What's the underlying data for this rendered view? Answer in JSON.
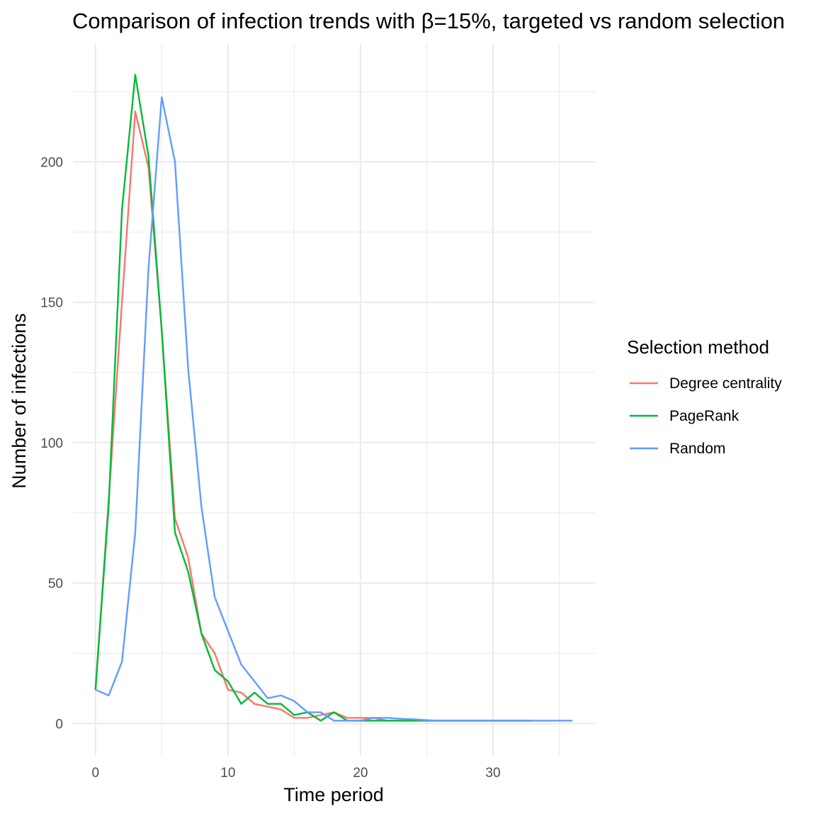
{
  "chart_data": {
    "type": "line",
    "title": "Comparison of infection trends with β=15%, targeted vs random selection",
    "xlabel": "Time period",
    "ylabel": "Number of infections",
    "xlim": [
      -1.7,
      37.7
    ],
    "ylim": [
      -11.5,
      242
    ],
    "x_ticks": [
      0,
      10,
      20,
      30
    ],
    "x_minor_ticks": [
      5,
      15,
      25,
      35
    ],
    "y_ticks": [
      0,
      50,
      100,
      150,
      200
    ],
    "y_minor_ticks": [
      25,
      75,
      125,
      175,
      225
    ],
    "grid": true,
    "legend": {
      "title": "Selection method",
      "position": "right"
    },
    "series": [
      {
        "name": "Degree centrality",
        "color": "#F8766D",
        "x": [
          0,
          1,
          2,
          3,
          4,
          5,
          6,
          7,
          8,
          9,
          10,
          11,
          12,
          13,
          14,
          15,
          16,
          17,
          18,
          19,
          20,
          21,
          22,
          23,
          24,
          25,
          26,
          27,
          28,
          29,
          30,
          31,
          32,
          33
        ],
        "y": [
          12,
          80,
          150,
          218,
          198,
          140,
          73,
          59,
          32,
          25,
          12,
          11,
          7,
          6,
          5,
          2,
          2,
          3,
          4,
          2,
          2,
          2,
          1,
          1,
          1,
          1,
          1,
          1,
          1,
          1,
          1,
          1,
          1,
          1
        ]
      },
      {
        "name": "PageRank",
        "color": "#00BA38",
        "x": [
          0,
          1,
          2,
          3,
          4,
          5,
          6,
          7,
          8,
          9,
          10,
          11,
          12,
          13,
          14,
          15,
          16,
          17,
          18,
          19,
          20,
          21,
          22,
          23,
          24,
          25,
          26,
          27,
          28,
          29,
          30,
          31,
          32,
          33
        ],
        "y": [
          12,
          78,
          183,
          231,
          202,
          140,
          68,
          54,
          32,
          19,
          15,
          7,
          11,
          7,
          7,
          3,
          4,
          1,
          4,
          1,
          1,
          1,
          1,
          1,
          1,
          1,
          1,
          1,
          1,
          1,
          1,
          1,
          1,
          1
        ]
      },
      {
        "name": "Random",
        "color": "#619CFF",
        "x": [
          0,
          1,
          2,
          3,
          4,
          5,
          6,
          7,
          8,
          9,
          10,
          11,
          12,
          13,
          14,
          15,
          16,
          17,
          18,
          19,
          20,
          21,
          22,
          23,
          24,
          25,
          26,
          27,
          28,
          29,
          30,
          31,
          32,
          33,
          34,
          35,
          36
        ],
        "y": [
          12,
          10,
          22,
          68,
          162,
          223,
          200,
          126,
          77,
          45,
          33,
          21,
          15,
          9,
          10,
          8,
          4,
          4,
          1,
          1,
          1,
          2,
          2,
          1.7,
          1.5,
          1.2,
          1,
          1,
          1,
          1,
          1,
          1,
          1,
          1,
          1,
          1,
          1
        ]
      }
    ]
  }
}
